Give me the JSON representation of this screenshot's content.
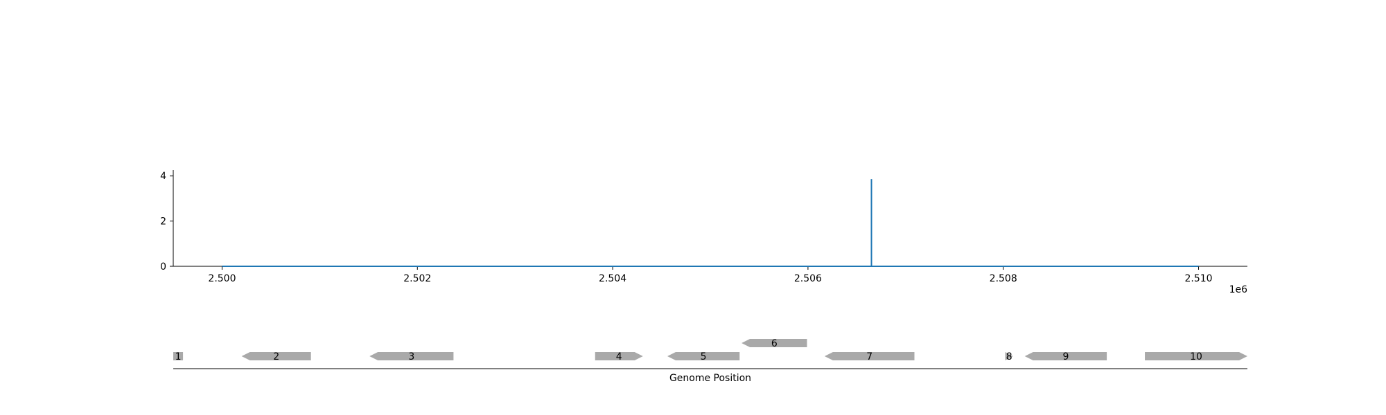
{
  "chart_data": [
    {
      "type": "line",
      "title": "",
      "xlabel": "",
      "ylabel": "",
      "x_offset_label": "1e6",
      "xlim": [
        2499500,
        2510500
      ],
      "ylim": [
        0,
        4.25
      ],
      "x_ticks": [
        2500000,
        2502000,
        2504000,
        2506000,
        2508000,
        2510000
      ],
      "x_tick_labels": [
        "2.500",
        "2.502",
        "2.504",
        "2.506",
        "2.508",
        "2.510"
      ],
      "y_ticks": [
        0,
        2,
        4
      ],
      "y_tick_labels": [
        "0",
        "2",
        "4"
      ],
      "grid": false,
      "line_color": "#1f77b4",
      "series": [
        {
          "x": [
            2500000,
            2506650,
            2506650,
            2506650,
            2506650,
            2510000
          ],
          "y": [
            0,
            0,
            3.85,
            3.85,
            0,
            0
          ]
        }
      ]
    },
    {
      "type": "gene_track",
      "xlabel": "Genome Position",
      "xlim": [
        2499500,
        2510500
      ],
      "gene_color": "#a9a9a9",
      "genes": [
        {
          "label": "1",
          "start": 2499400,
          "end": 2499600,
          "strand": "-",
          "row": 0
        },
        {
          "label": "2",
          "start": 2500200,
          "end": 2500910,
          "strand": "-",
          "row": 0
        },
        {
          "label": "3",
          "start": 2501510,
          "end": 2502370,
          "strand": "-",
          "row": 0
        },
        {
          "label": "4",
          "start": 2503820,
          "end": 2504310,
          "strand": "+",
          "row": 0
        },
        {
          "label": "5",
          "start": 2504560,
          "end": 2505300,
          "strand": "-",
          "row": 0
        },
        {
          "label": "6",
          "start": 2505320,
          "end": 2505990,
          "strand": "-",
          "row": 1
        },
        {
          "label": "7",
          "start": 2506170,
          "end": 2507090,
          "strand": "-",
          "row": 0
        },
        {
          "label": "8",
          "start": 2508020,
          "end": 2508100,
          "strand": "+",
          "row": 0
        },
        {
          "label": "9",
          "start": 2508220,
          "end": 2509060,
          "strand": "-",
          "row": 0
        },
        {
          "label": "10",
          "start": 2509450,
          "end": 2510500,
          "strand": "+",
          "row": 0
        }
      ]
    }
  ]
}
